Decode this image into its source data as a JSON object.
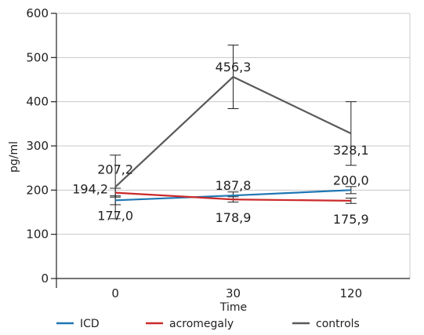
{
  "chart_data": {
    "type": "line",
    "title": "",
    "xlabel": "Time",
    "ylabel": "pg/ml",
    "categories": [
      "0",
      "30",
      "120"
    ],
    "ylim": [
      0,
      600
    ],
    "yticks": [
      0,
      100,
      200,
      300,
      400,
      500,
      600
    ],
    "ytick_labels": [
      "0",
      "100",
      "200",
      "300",
      "400",
      "500",
      "600"
    ],
    "grid": "horizontal",
    "legend_position": "bottom",
    "series": [
      {
        "name": "ICD",
        "color": "#1f77b4",
        "values": [
          177.0,
          187.8,
          200.0
        ],
        "labels": [
          "177,0",
          "187,8",
          "200,0"
        ],
        "error": [
          10,
          8,
          8
        ]
      },
      {
        "name": "acromegaly",
        "color": "#cc2a2a",
        "values": [
          194.2,
          178.9,
          175.9
        ],
        "labels": [
          "194,2",
          "178,9",
          "175,9"
        ],
        "error": [
          10,
          6,
          6
        ]
      },
      {
        "name": "controls",
        "color": "#595959",
        "values": [
          207.2,
          456.3,
          328.1
        ],
        "labels": [
          "207,2",
          "456,3",
          "328,1"
        ],
        "error": [
          72,
          72,
          72
        ]
      }
    ]
  }
}
